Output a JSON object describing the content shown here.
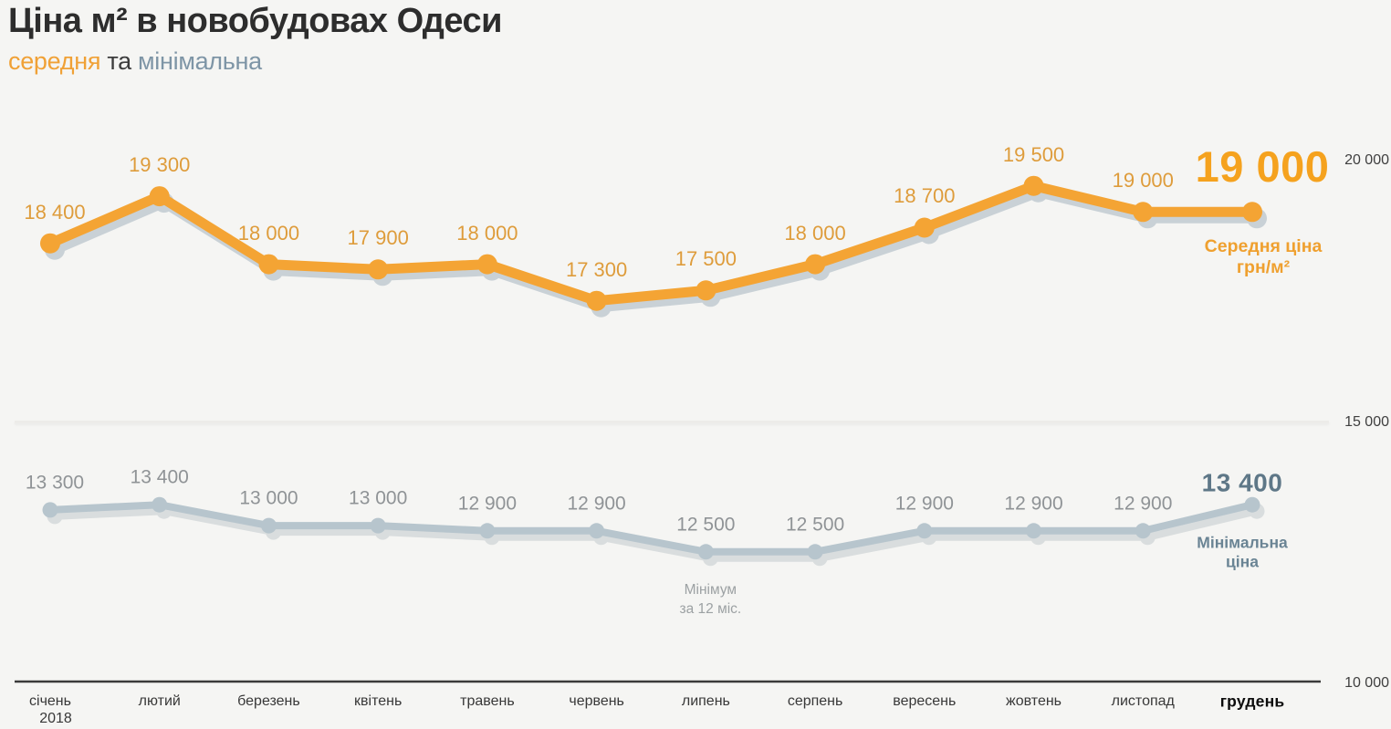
{
  "page": {
    "background": "#F5F5F3"
  },
  "header": {
    "title": "Ціна м² в новобудовах Одеси",
    "subtitle": [
      {
        "text": "середня",
        "color": "#F0A136"
      },
      {
        "text": " та ",
        "color": "#3C3C3C"
      },
      {
        "text": "мінімальна",
        "color": "#7E95A6"
      }
    ]
  },
  "chart_data": {
    "type": "line",
    "title": "Ціна м² в новобудовах Одеси",
    "subtitle": "середня та мінімальна",
    "categories": [
      "січень",
      "лютий",
      "березень",
      "квітень",
      "травень",
      "червень",
      "липень",
      "серпень",
      "вересень",
      "жовтень",
      "листопад",
      "грудень"
    ],
    "first_category_subline": "2018",
    "series": [
      {
        "name": "Середня ціна грн/м²",
        "legend_lines": [
          "Середня ціна",
          "грн/м&sup2;"
        ],
        "values": [
          18400,
          19300,
          18000,
          17900,
          18000,
          17300,
          17500,
          18000,
          18700,
          19500,
          19000,
          19000
        ],
        "final_label": "19 000",
        "color": "#F4A434",
        "label_color": "#DE9C3B",
        "big_label_color": "#F5A21E",
        "legend_color": "#EFA02F",
        "shadow_color": "#C9D1D6"
      },
      {
        "name": "Мінімальна ціна",
        "legend_lines": [
          "Мінімальна",
          "ціна"
        ],
        "values": [
          13300,
          13400,
          13000,
          13000,
          12900,
          12900,
          12500,
          12500,
          12900,
          12900,
          12900,
          13400
        ],
        "final_label": "13 400",
        "color": "#B7C5CD",
        "label_color": "#8F9396",
        "big_label_color": "#5E7787",
        "legend_color": "#6A8494",
        "shadow_color": "#D9DDDE"
      }
    ],
    "ylim": [
      10000,
      20000
    ],
    "yticks": [
      {
        "value": 20000,
        "label": "20 000",
        "grid": false
      },
      {
        "value": 15000,
        "label": "15 000",
        "grid": true
      },
      {
        "value": 10000,
        "label": "10 000",
        "grid": false
      }
    ],
    "annotation": {
      "lines": [
        "Мінімум",
        "за 12 міс."
      ],
      "month_index": 6,
      "color": "#9CA1A3"
    },
    "legend_position": "right of last points",
    "grid": "single faint horizontal line at 15 000; dark baseline axis at 10 000"
  }
}
